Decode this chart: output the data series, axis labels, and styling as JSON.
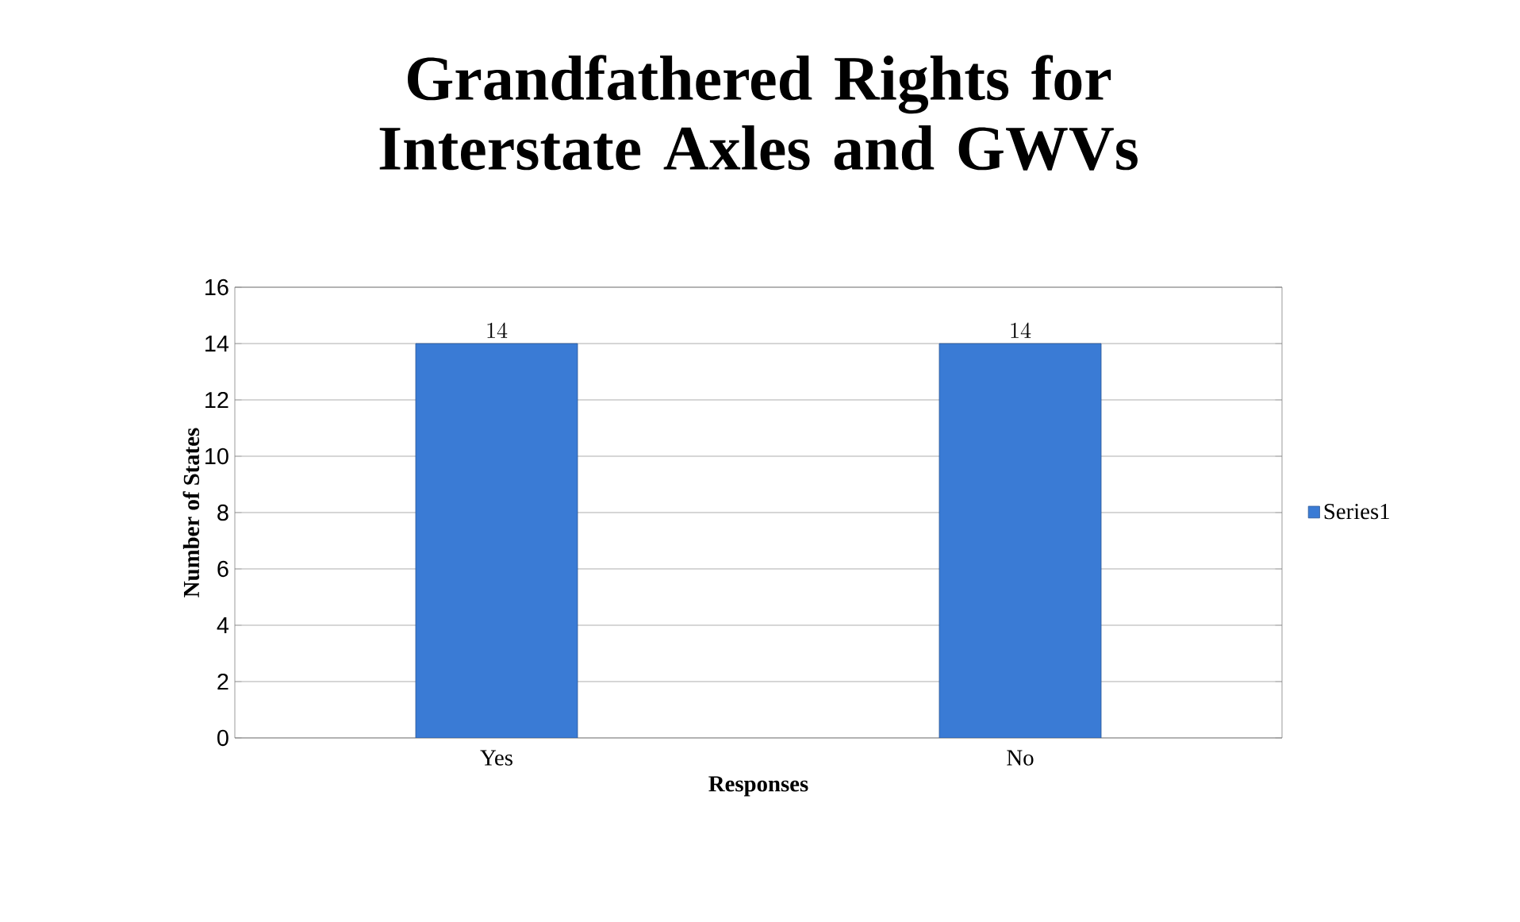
{
  "chart_data": {
    "type": "bar",
    "title": "Grandfathered Rights for Interstate Axles and GWVs",
    "xlabel": "Responses",
    "ylabel": "Number of States",
    "categories": [
      "Yes",
      "No"
    ],
    "series": [
      {
        "name": "Series1",
        "color": "#3a7bd5",
        "values": [
          14,
          14
        ]
      }
    ],
    "ylim": [
      0,
      16
    ],
    "yticks": [
      0,
      2,
      4,
      6,
      8,
      10,
      12,
      14,
      16
    ],
    "grid": "y",
    "legend": "right",
    "data_labels": true
  }
}
